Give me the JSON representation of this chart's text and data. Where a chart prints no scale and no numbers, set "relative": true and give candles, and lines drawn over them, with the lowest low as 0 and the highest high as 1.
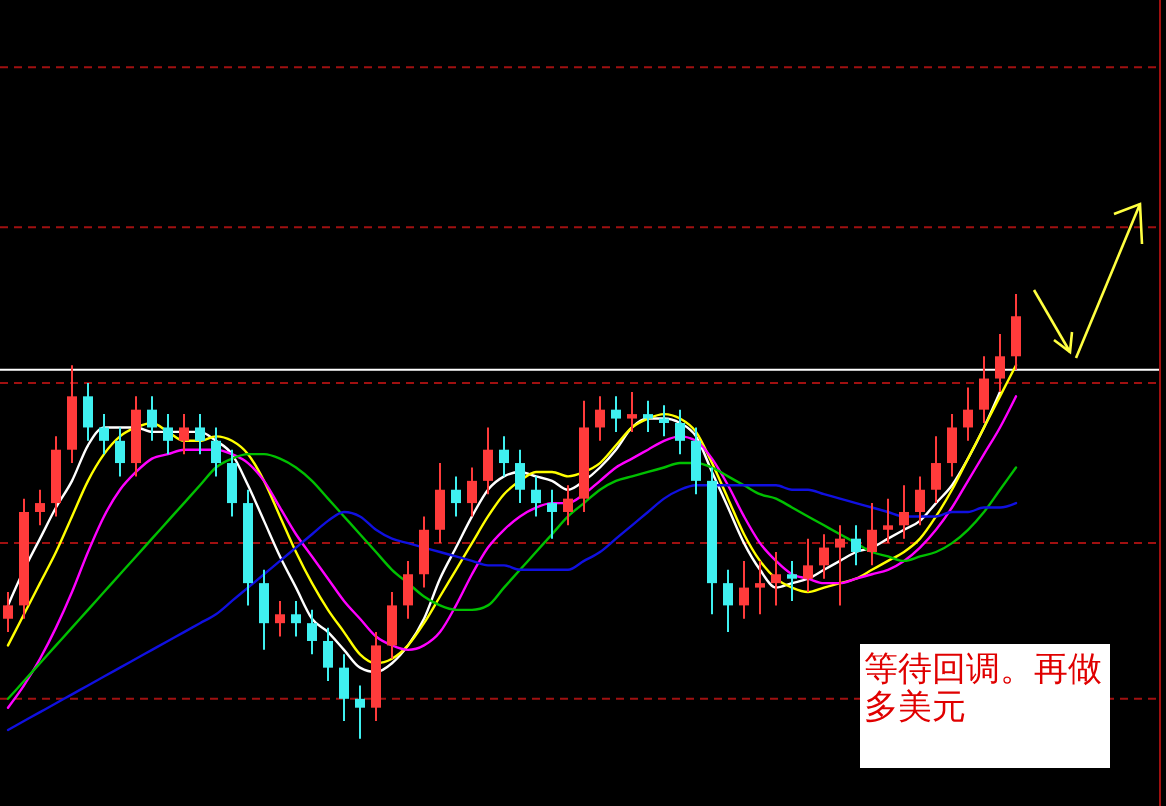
{
  "chart_data": {
    "type": "candlestick",
    "relative": true,
    "categories": [
      null,
      null,
      null,
      null,
      null,
      null,
      null,
      null,
      null,
      null,
      null,
      null,
      null,
      null,
      null,
      null,
      null,
      null,
      null,
      null,
      null,
      null,
      null,
      null,
      null,
      null,
      null,
      null,
      null,
      null,
      null,
      null,
      null,
      null,
      null,
      null,
      null,
      null,
      null,
      null,
      null,
      null,
      null,
      null,
      null,
      null,
      null,
      null,
      null,
      null,
      null,
      null,
      null,
      null,
      null,
      null,
      null,
      null,
      null,
      null,
      null,
      null,
      null,
      null
    ],
    "ohlc": [
      [
        0.27,
        0.33,
        0.24,
        0.3
      ],
      [
        0.3,
        0.54,
        0.27,
        0.51
      ],
      [
        0.51,
        0.56,
        0.48,
        0.53
      ],
      [
        0.53,
        0.68,
        0.5,
        0.65
      ],
      [
        0.65,
        0.84,
        0.62,
        0.77
      ],
      [
        0.77,
        0.8,
        0.67,
        0.7
      ],
      [
        0.7,
        0.73,
        0.64,
        0.67
      ],
      [
        0.67,
        0.7,
        0.59,
        0.62
      ],
      [
        0.62,
        0.77,
        0.59,
        0.74
      ],
      [
        0.74,
        0.77,
        0.67,
        0.7
      ],
      [
        0.7,
        0.73,
        0.64,
        0.67
      ],
      [
        0.67,
        0.73,
        0.64,
        0.7
      ],
      [
        0.7,
        0.73,
        0.64,
        0.67
      ],
      [
        0.67,
        0.7,
        0.59,
        0.62
      ],
      [
        0.62,
        0.65,
        0.5,
        0.53
      ],
      [
        0.53,
        0.56,
        0.3,
        0.35
      ],
      [
        0.35,
        0.38,
        0.2,
        0.26
      ],
      [
        0.26,
        0.31,
        0.23,
        0.28
      ],
      [
        0.28,
        0.31,
        0.23,
        0.26
      ],
      [
        0.26,
        0.29,
        0.19,
        0.22
      ],
      [
        0.22,
        0.25,
        0.13,
        0.16
      ],
      [
        0.16,
        0.19,
        0.04,
        0.09
      ],
      [
        0.09,
        0.12,
        0,
        0.07
      ],
      [
        0.07,
        0.24,
        0.04,
        0.21
      ],
      [
        0.21,
        0.33,
        0.18,
        0.3
      ],
      [
        0.3,
        0.4,
        0.27,
        0.37
      ],
      [
        0.37,
        0.5,
        0.34,
        0.47
      ],
      [
        0.47,
        0.62,
        0.44,
        0.56
      ],
      [
        0.56,
        0.59,
        0.5,
        0.53
      ],
      [
        0.53,
        0.61,
        0.5,
        0.58
      ],
      [
        0.58,
        0.7,
        0.55,
        0.65
      ],
      [
        0.65,
        0.68,
        0.59,
        0.62
      ],
      [
        0.62,
        0.65,
        0.53,
        0.56
      ],
      [
        0.56,
        0.59,
        0.5,
        0.53
      ],
      [
        0.53,
        0.56,
        0.45,
        0.51
      ],
      [
        0.51,
        0.57,
        0.48,
        0.54
      ],
      [
        0.54,
        0.76,
        0.51,
        0.7
      ],
      [
        0.7,
        0.77,
        0.67,
        0.74
      ],
      [
        0.74,
        0.77,
        0.69,
        0.72
      ],
      [
        0.72,
        0.78,
        0.69,
        0.73
      ],
      [
        0.73,
        0.76,
        0.69,
        0.72
      ],
      [
        0.72,
        0.75,
        0.68,
        0.71
      ],
      [
        0.71,
        0.74,
        0.64,
        0.67
      ],
      [
        0.67,
        0.7,
        0.55,
        0.58
      ],
      [
        0.58,
        0.61,
        0.28,
        0.35
      ],
      [
        0.35,
        0.38,
        0.24,
        0.3
      ],
      [
        0.3,
        0.4,
        0.27,
        0.34
      ],
      [
        0.34,
        0.4,
        0.28,
        0.35
      ],
      [
        0.35,
        0.42,
        0.3,
        0.37
      ],
      [
        0.37,
        0.4,
        0.31,
        0.36
      ],
      [
        0.36,
        0.45,
        0.33,
        0.39
      ],
      [
        0.39,
        0.46,
        0.36,
        0.43
      ],
      [
        0.43,
        0.48,
        0.3,
        0.45
      ],
      [
        0.45,
        0.48,
        0.39,
        0.42
      ],
      [
        0.42,
        0.53,
        0.39,
        0.47
      ],
      [
        0.47,
        0.54,
        0.44,
        0.48
      ],
      [
        0.48,
        0.57,
        0.45,
        0.51
      ],
      [
        0.51,
        0.59,
        0.48,
        0.56
      ],
      [
        0.56,
        0.68,
        0.53,
        0.62
      ],
      [
        0.62,
        0.73,
        0.59,
        0.7
      ],
      [
        0.7,
        0.79,
        0.67,
        0.74
      ],
      [
        0.74,
        0.86,
        0.71,
        0.81
      ],
      [
        0.81,
        0.91,
        0.78,
        0.86
      ],
      [
        0.86,
        1,
        0.83,
        0.95
      ]
    ],
    "series": [
      {
        "type": "line",
        "color": "#ffffff",
        "values": [
          0.3,
          0.38,
          0.45,
          0.52,
          0.58,
          0.66,
          0.7,
          0.7,
          0.7,
          0.69,
          0.69,
          0.69,
          0.69,
          0.67,
          0.64,
          0.57,
          0.49,
          0.41,
          0.34,
          0.27,
          0.24,
          0.2,
          0.16,
          0.15,
          0.17,
          0.21,
          0.27,
          0.36,
          0.43,
          0.5,
          0.56,
          0.59,
          0.6,
          0.59,
          0.58,
          0.56,
          0.58,
          0.61,
          0.65,
          0.7,
          0.72,
          0.72,
          0.71,
          0.68,
          0.6,
          0.52,
          0.44,
          0.38,
          0.34,
          0.35,
          0.36,
          0.38,
          0.4,
          0.42,
          0.43,
          0.45,
          0.47,
          0.49,
          0.53,
          0.57,
          0.63,
          0.7,
          0.78,
          null
        ]
      },
      {
        "type": "line",
        "color": "#ffff00",
        "values": [
          0.21,
          0.28,
          0.35,
          0.42,
          0.5,
          0.58,
          0.64,
          0.68,
          0.7,
          0.71,
          0.69,
          0.67,
          0.67,
          0.68,
          0.67,
          0.64,
          0.58,
          0.5,
          0.42,
          0.35,
          0.29,
          0.24,
          0.19,
          0.17,
          0.18,
          0.21,
          0.26,
          0.32,
          0.38,
          0.44,
          0.5,
          0.55,
          0.58,
          0.6,
          0.6,
          0.59,
          0.6,
          0.62,
          0.66,
          0.7,
          0.72,
          0.73,
          0.72,
          0.69,
          0.62,
          0.54,
          0.46,
          0.4,
          0.36,
          0.34,
          0.33,
          0.34,
          0.35,
          0.36,
          0.38,
          0.4,
          0.42,
          0.45,
          0.5,
          0.56,
          0.63,
          0.7,
          0.77,
          0.84
        ]
      },
      {
        "type": "line",
        "color": "#ff00ff",
        "values": [
          0.07,
          0.12,
          0.18,
          0.25,
          0.33,
          0.42,
          0.5,
          0.56,
          0.6,
          0.63,
          0.64,
          0.65,
          0.65,
          0.65,
          0.64,
          0.62,
          0.58,
          0.52,
          0.46,
          0.41,
          0.36,
          0.31,
          0.27,
          0.23,
          0.21,
          0.2,
          0.21,
          0.24,
          0.3,
          0.37,
          0.43,
          0.47,
          0.5,
          0.52,
          0.53,
          0.53,
          0.55,
          0.58,
          0.61,
          0.63,
          0.65,
          0.67,
          0.68,
          0.67,
          0.63,
          0.57,
          0.5,
          0.44,
          0.4,
          0.37,
          0.36,
          0.35,
          0.35,
          0.36,
          0.37,
          0.38,
          0.4,
          0.43,
          0.47,
          0.52,
          0.58,
          0.64,
          0.7,
          0.77
        ]
      },
      {
        "type": "line",
        "color": "#00c000",
        "values": [
          0.09,
          0.13,
          0.17,
          0.21,
          0.25,
          0.29,
          0.33,
          0.37,
          0.41,
          0.45,
          0.49,
          0.53,
          0.57,
          0.61,
          0.63,
          0.64,
          0.64,
          0.63,
          0.61,
          0.58,
          0.54,
          0.5,
          0.46,
          0.42,
          0.38,
          0.35,
          0.32,
          0.3,
          0.29,
          0.29,
          0.3,
          0.34,
          0.38,
          0.42,
          0.46,
          0.5,
          0.53,
          0.56,
          0.58,
          0.59,
          0.6,
          0.61,
          0.62,
          0.62,
          0.61,
          0.59,
          0.57,
          0.55,
          0.54,
          0.52,
          0.5,
          0.48,
          0.46,
          0.44,
          0.42,
          0.41,
          0.4,
          0.41,
          0.42,
          0.44,
          0.47,
          0.51,
          0.56,
          0.61
        ]
      },
      {
        "type": "line",
        "color": "#1010e0",
        "values": [
          0.02,
          0.04,
          0.06,
          0.08,
          0.1,
          0.12,
          0.14,
          0.16,
          0.18,
          0.2,
          0.22,
          0.24,
          0.26,
          0.28,
          0.31,
          0.34,
          0.37,
          0.4,
          0.43,
          0.46,
          0.49,
          0.51,
          0.5,
          0.47,
          0.45,
          0.44,
          0.43,
          0.42,
          0.41,
          0.4,
          0.39,
          0.39,
          0.38,
          0.38,
          0.38,
          0.38,
          0.4,
          0.42,
          0.45,
          0.48,
          0.51,
          0.54,
          0.56,
          0.57,
          0.57,
          0.57,
          0.57,
          0.57,
          0.57,
          0.56,
          0.56,
          0.55,
          0.54,
          0.53,
          0.52,
          0.51,
          0.5,
          0.5,
          0.5,
          0.51,
          0.51,
          0.52,
          0.52,
          0.53
        ]
      }
    ],
    "ref_lines": [
      {
        "axis": "y",
        "value": 1.51,
        "color": "#a01010",
        "line_style": "dashed"
      },
      {
        "axis": "y",
        "value": 1.15,
        "color": "#a01010",
        "line_style": "dashed"
      },
      {
        "axis": "y",
        "value": 0.8,
        "color": "#a01010",
        "line_style": "dashed"
      },
      {
        "axis": "y",
        "value": 0.44,
        "color": "#a01010",
        "line_style": "dashed"
      },
      {
        "axis": "y",
        "value": 0.09,
        "color": "#a01010",
        "line_style": "dashed"
      },
      {
        "axis": "y",
        "value": 0.83,
        "color": "#ffffff",
        "line_style": "solid"
      }
    ],
    "annotations": [
      "等待回调。再做多美元"
    ]
  }
}
